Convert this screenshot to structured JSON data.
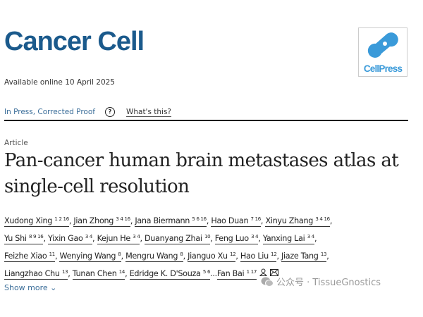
{
  "journal": {
    "title": "Cancer Cell",
    "publisher_logo": "CellPress",
    "brand_color": "#1b5a8c"
  },
  "availability": "Available online 10 April 2025",
  "status": {
    "label": "In Press, Corrected Proof",
    "help_icon": "question-circle-icon",
    "whats_this": "What's this?"
  },
  "article": {
    "type": "Article",
    "title": "Pan-cancer human brain metastases atlas at single-cell resolution"
  },
  "authors": [
    {
      "name": "Xudong Xing",
      "aff": "1 2 16"
    },
    {
      "name": "Jian Zhong",
      "aff": "3 4 16"
    },
    {
      "name": "Jana Biermann",
      "aff": "5 6 16"
    },
    {
      "name": "Hao Duan",
      "aff": "7 16"
    },
    {
      "name": "Xinyu Zhang",
      "aff": "3 4 16"
    },
    {
      "name": "Yu Shi",
      "aff": "8 9 16"
    },
    {
      "name": "Yixin Gao",
      "aff": "3 4"
    },
    {
      "name": "Kejun He",
      "aff": "3 4"
    },
    {
      "name": "Duanyang Zhai",
      "aff": "10"
    },
    {
      "name": "Feng Luo",
      "aff": "3 4"
    },
    {
      "name": "Yanxing Lai",
      "aff": "3 4"
    },
    {
      "name": "Feizhe Xiao",
      "aff": "11"
    },
    {
      "name": "Wenying Wang",
      "aff": "8"
    },
    {
      "name": "Mengru Wang",
      "aff": "8"
    },
    {
      "name": "Jianguo Xu",
      "aff": "12"
    },
    {
      "name": "Hao Liu",
      "aff": "12"
    },
    {
      "name": "Jiaze Tang",
      "aff": "13"
    },
    {
      "name": "Liangzhao Chu",
      "aff": "13"
    },
    {
      "name": "Tunan Chen",
      "aff": "14"
    },
    {
      "name": "Edridge K. D'Souza",
      "aff": "5 6"
    },
    {
      "name": "Fan Bai",
      "aff": "1 17"
    }
  ],
  "ellipsis": "...",
  "corresponding_icons": [
    "person-icon",
    "envelope-icon"
  ],
  "show_more": "Show more",
  "watermark": "公众号 · TissueGnostics"
}
